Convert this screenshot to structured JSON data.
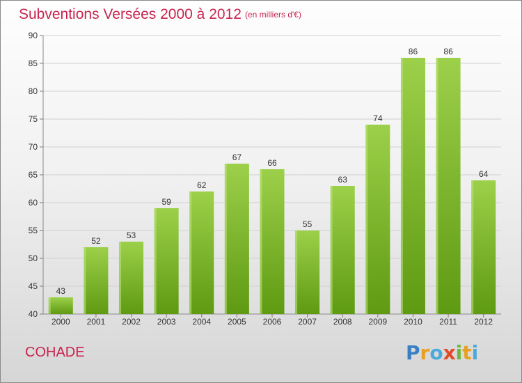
{
  "header": {
    "title": "Subventions Versées 2000 à 2012",
    "unit_note": "(en milliers d'€)"
  },
  "footer": {
    "commune": "COHADE",
    "brand": "Proxiti"
  },
  "colors": {
    "title": "#c8244f",
    "bar_top": "#9dd04a",
    "bar_bottom": "#5e9a12",
    "grid": "#d0d0d0"
  },
  "chart_data": {
    "type": "bar",
    "title": "Subventions Versées 2000 à 2012",
    "subtitle": "(en milliers d'€)",
    "categories": [
      "2000",
      "2001",
      "2002",
      "2003",
      "2004",
      "2005",
      "2006",
      "2007",
      "2008",
      "2009",
      "2010",
      "2011",
      "2012"
    ],
    "values": [
      43,
      52,
      53,
      59,
      62,
      67,
      66,
      55,
      63,
      74,
      86,
      86,
      64
    ],
    "xlabel": "",
    "ylabel": "",
    "ylim": [
      40,
      90
    ],
    "yticks": [
      40,
      45,
      50,
      55,
      60,
      65,
      70,
      75,
      80,
      85,
      90
    ],
    "grid": true,
    "legend": "none"
  }
}
